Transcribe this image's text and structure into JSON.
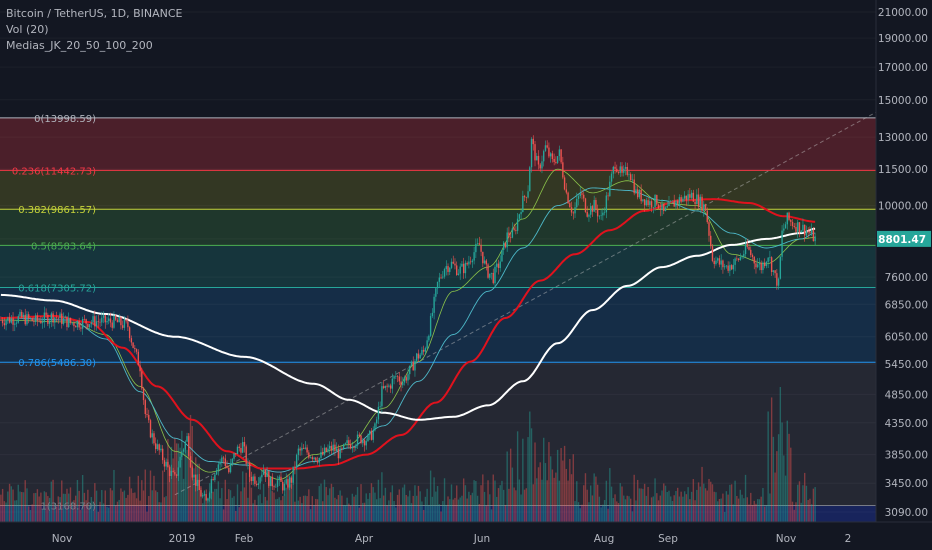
{
  "header": {
    "title": "Bitcoin / TetherUS, 1D, BINANCE",
    "volume": "Vol (20)",
    "indicator": "Medias_JK_20_50_100_200"
  },
  "colors": {
    "background": "#131722",
    "up": "#26a69a",
    "down": "#ef5350",
    "ma_red": "#e0121d",
    "ma_white": "#ffffff",
    "ma_cyan": "#4db8c8",
    "ma_green": "#8bc34a"
  },
  "chart_data": {
    "type": "candlestick",
    "symbol": "Bitcoin / TetherUS",
    "timeframe": "1D",
    "exchange": "BINANCE",
    "y_scale": "log",
    "price_axis": {
      "ticks": [
        21000,
        19000,
        17000,
        15000,
        13000,
        11500,
        10000,
        8800,
        7600,
        6850,
        6050,
        5450,
        4850,
        4350,
        3850,
        3450,
        3090
      ],
      "labels": [
        "21000.00",
        "19000.00",
        "17000.00",
        "15000.00",
        "13000.00",
        "11500.00",
        "10000.00",
        "8800.00",
        "7600.00",
        "6850.00",
        "6050.00",
        "5450.00",
        "4850.00",
        "4350.00",
        "3850.00",
        "3450.00",
        "3090.00"
      ]
    },
    "time_axis": {
      "labels": [
        "Nov",
        "2019",
        "Feb",
        "Apr",
        "Jun",
        "Aug",
        "Sep",
        "Nov",
        "2"
      ]
    },
    "last_price": {
      "value": 8801.47,
      "label": "8801.47"
    },
    "fibonacci": [
      {
        "ratio": "0",
        "price": 13998.59,
        "label": "0(13998.59)",
        "color": "#b2b5be"
      },
      {
        "ratio": "0.236",
        "price": 11442.73,
        "label": "0.236(11442.73)",
        "color": "#f23645"
      },
      {
        "ratio": "0.382",
        "price": 9861.57,
        "label": "0.382(9861.57)",
        "color": "#c6d33a"
      },
      {
        "ratio": "0.5",
        "price": 8583.64,
        "label": "0.5(8583.64)",
        "color": "#4caf50"
      },
      {
        "ratio": "0.618",
        "price": 7305.72,
        "label": "0.618(7305.72)",
        "color": "#26a69a"
      },
      {
        "ratio": "0.786",
        "price": 5486.3,
        "label": "0.786(5486.30)",
        "color": "#2196f3"
      },
      {
        "ratio": "1",
        "price": 3168.7,
        "label": "1(3168.70)",
        "color": "#787b86"
      }
    ],
    "price_path": [
      [
        0,
        6450
      ],
      [
        12,
        6500
      ],
      [
        20,
        6420
      ],
      [
        30,
        6550
      ],
      [
        40,
        6380
      ],
      [
        55,
        6420
      ],
      [
        66,
        6400
      ],
      [
        73,
        6300
      ],
      [
        77,
        5700
      ],
      [
        80,
        5400
      ],
      [
        83,
        4500
      ],
      [
        86,
        4200
      ],
      [
        89,
        4000
      ],
      [
        93,
        3800
      ],
      [
        96,
        3650
      ],
      [
        100,
        3500
      ],
      [
        104,
        3900
      ],
      [
        107,
        4100
      ],
      [
        110,
        3600
      ],
      [
        114,
        3350
      ],
      [
        118,
        3200
      ],
      [
        121,
        3500
      ],
      [
        124,
        3700
      ],
      [
        128,
        3800
      ],
      [
        131,
        3600
      ],
      [
        135,
        3900
      ],
      [
        139,
        4000
      ],
      [
        143,
        3550
      ],
      [
        147,
        3500
      ],
      [
        151,
        3650
      ],
      [
        155,
        3450
      ],
      [
        159,
        3480
      ],
      [
        163,
        3400
      ],
      [
        167,
        3500
      ],
      [
        171,
        3900
      ],
      [
        175,
        3900
      ],
      [
        179,
        3850
      ],
      [
        183,
        3800
      ],
      [
        187,
        3900
      ],
      [
        191,
        3950
      ],
      [
        195,
        3850
      ],
      [
        199,
        4000
      ],
      [
        203,
        4050
      ],
      [
        207,
        4100
      ],
      [
        211,
        4080
      ],
      [
        215,
        4250
      ],
      [
        219,
        4900
      ],
      [
        223,
        5000
      ],
      [
        227,
        5200
      ],
      [
        231,
        5100
      ],
      [
        235,
        5300
      ],
      [
        239,
        5600
      ],
      [
        243,
        5700
      ],
      [
        247,
        6400
      ],
      [
        251,
        7400
      ],
      [
        255,
        7900
      ],
      [
        259,
        8000
      ],
      [
        263,
        7800
      ],
      [
        267,
        7900
      ],
      [
        271,
        8300
      ],
      [
        275,
        8600
      ],
      [
        279,
        7800
      ],
      [
        283,
        7600
      ],
      [
        287,
        8100
      ],
      [
        291,
        8900
      ],
      [
        295,
        9000
      ],
      [
        299,
        10000
      ],
      [
        303,
        10700
      ],
      [
        305,
        12800
      ],
      [
        309,
        11500
      ],
      [
        313,
        12500
      ],
      [
        317,
        11800
      ],
      [
        321,
        12200
      ],
      [
        325,
        10500
      ],
      [
        329,
        9700
      ],
      [
        333,
        10500
      ],
      [
        337,
        9800
      ],
      [
        341,
        10000
      ],
      [
        345,
        9500
      ],
      [
        349,
        10500
      ],
      [
        353,
        11800
      ],
      [
        357,
        11200
      ],
      [
        361,
        11500
      ],
      [
        365,
        10500
      ],
      [
        369,
        10300
      ],
      [
        373,
        10100
      ],
      [
        377,
        10200
      ],
      [
        381,
        9700
      ],
      [
        385,
        10000
      ],
      [
        389,
        10200
      ],
      [
        393,
        10300
      ],
      [
        397,
        10400
      ],
      [
        401,
        10200
      ],
      [
        405,
        9900
      ],
      [
        409,
        8200
      ],
      [
        413,
        8000
      ],
      [
        417,
        7900
      ],
      [
        421,
        8000
      ],
      [
        425,
        8200
      ],
      [
        429,
        8500
      ],
      [
        433,
        8100
      ],
      [
        437,
        7900
      ],
      [
        441,
        8300
      ],
      [
        445,
        7600
      ],
      [
        447,
        7400
      ],
      [
        449,
        9000
      ],
      [
        452,
        9500
      ],
      [
        456,
        9300
      ],
      [
        460,
        9200
      ],
      [
        464,
        9050
      ],
      [
        468,
        8800
      ]
    ],
    "moving_averages": {
      "white": [
        [
          0,
          7100
        ],
        [
          30,
          6950
        ],
        [
          60,
          6600
        ],
        [
          100,
          6050
        ],
        [
          140,
          5600
        ],
        [
          180,
          5050
        ],
        [
          200,
          4750
        ],
        [
          220,
          4520
        ],
        [
          240,
          4400
        ],
        [
          260,
          4450
        ],
        [
          280,
          4650
        ],
        [
          300,
          5100
        ],
        [
          320,
          5900
        ],
        [
          340,
          6700
        ],
        [
          360,
          7350
        ],
        [
          380,
          7900
        ],
        [
          400,
          8250
        ],
        [
          420,
          8600
        ],
        [
          440,
          8800
        ],
        [
          460,
          9000
        ],
        [
          468,
          9150
        ]
      ],
      "red": [
        [
          0,
          6500
        ],
        [
          30,
          6550
        ],
        [
          50,
          6400
        ],
        [
          70,
          5800
        ],
        [
          90,
          5000
        ],
        [
          110,
          4400
        ],
        [
          130,
          3900
        ],
        [
          150,
          3650
        ],
        [
          170,
          3650
        ],
        [
          190,
          3700
        ],
        [
          210,
          3850
        ],
        [
          230,
          4150
        ],
        [
          250,
          4700
        ],
        [
          270,
          5500
        ],
        [
          290,
          6500
        ],
        [
          310,
          7500
        ],
        [
          330,
          8300
        ],
        [
          350,
          9100
        ],
        [
          370,
          9800
        ],
        [
          390,
          10200
        ],
        [
          410,
          10250
        ],
        [
          430,
          10100
        ],
        [
          450,
          9600
        ],
        [
          468,
          9400
        ]
      ],
      "cyan": [
        [
          0,
          6500
        ],
        [
          40,
          6450
        ],
        [
          60,
          6000
        ],
        [
          80,
          4900
        ],
        [
          100,
          4100
        ],
        [
          120,
          3750
        ],
        [
          140,
          3700
        ],
        [
          160,
          3600
        ],
        [
          180,
          3750
        ],
        [
          200,
          3950
        ],
        [
          220,
          4300
        ],
        [
          240,
          5100
        ],
        [
          260,
          6100
        ],
        [
          280,
          7200
        ],
        [
          300,
          8500
        ],
        [
          320,
          10000
        ],
        [
          340,
          10700
        ],
        [
          360,
          10600
        ],
        [
          380,
          10200
        ],
        [
          400,
          9800
        ],
        [
          420,
          9000
        ],
        [
          440,
          8500
        ],
        [
          460,
          8800
        ],
        [
          468,
          9000
        ]
      ],
      "green": [
        [
          0,
          6450
        ],
        [
          40,
          6400
        ],
        [
          60,
          6100
        ],
        [
          80,
          5000
        ],
        [
          100,
          3900
        ],
        [
          120,
          3600
        ],
        [
          140,
          3750
        ],
        [
          160,
          3500
        ],
        [
          180,
          3850
        ],
        [
          200,
          4000
        ],
        [
          220,
          4600
        ],
        [
          240,
          5500
        ],
        [
          260,
          7200
        ],
        [
          280,
          7900
        ],
        [
          300,
          9500
        ],
        [
          320,
          11500
        ],
        [
          340,
          10500
        ],
        [
          360,
          11000
        ],
        [
          380,
          10100
        ],
        [
          400,
          10000
        ],
        [
          420,
          8300
        ],
        [
          440,
          8000
        ],
        [
          460,
          8800
        ],
        [
          468,
          8850
        ]
      ]
    }
  }
}
